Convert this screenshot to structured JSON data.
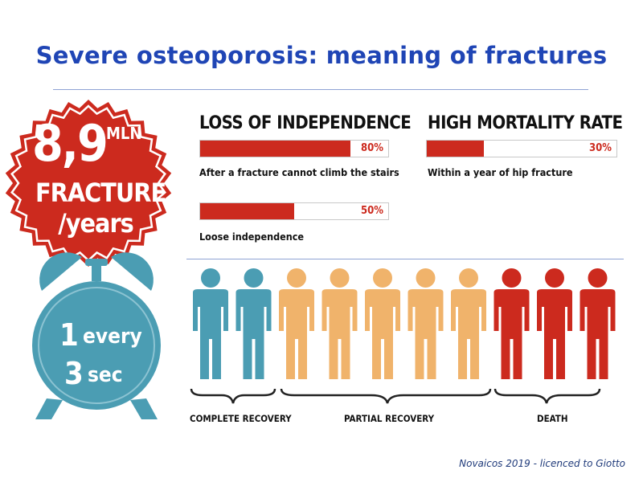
{
  "title": "Severe osteoporosis: meaning of fractures",
  "colors": {
    "title": "#1f45b5",
    "red": "#cc2a1e",
    "teal": "#4b9db3",
    "orange": "#f0b36b",
    "bar_border": "#c8c8c8"
  },
  "badge": {
    "number": "8,9",
    "unit": "MLN",
    "line2": "FRACTURE",
    "line3": "/years",
    "icon": "starburst-badge"
  },
  "clock": {
    "line1_num": "1",
    "line1_word": "every",
    "line2_num": "3",
    "line2_word": "sec",
    "icon": "alarm-clock-icon"
  },
  "stats": {
    "independence": {
      "title": "LOSS OF INDEPENDENCE",
      "bar1": {
        "value": 80,
        "label": "80%",
        "desc": "After a fracture cannot climb the stairs"
      },
      "bar2": {
        "value": 50,
        "label": "50%",
        "desc": "Loose independence"
      }
    },
    "mortality": {
      "title": "HIGH MORTALITY RATE",
      "bar1": {
        "value": 30,
        "label": "30%",
        "desc": "Within a year of hip fracture"
      }
    }
  },
  "people": {
    "icon": "person-icon",
    "groups": [
      {
        "label": "COMPLETE RECOVERY",
        "count": 2,
        "color": "#4b9db3"
      },
      {
        "label": "PARTIAL RECOVERY",
        "count": 5,
        "color": "#f0b36b"
      },
      {
        "label": "DEATH",
        "count": 3,
        "color": "#cc2a1e"
      }
    ]
  },
  "credit": "Novaicos 2019 - licenced to Giotto"
}
